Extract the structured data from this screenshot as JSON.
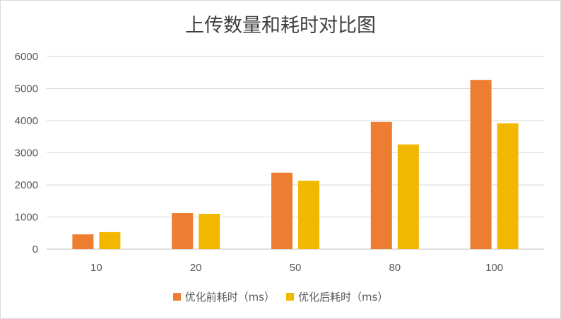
{
  "chart_data": {
    "type": "bar",
    "title": "上传数量和耗时对比图",
    "xlabel": "",
    "ylabel": "",
    "categories": [
      "10",
      "20",
      "50",
      "80",
      "100"
    ],
    "series": [
      {
        "name": "优化前耗时（ms）",
        "color": "#ed7d31",
        "values": [
          460,
          1120,
          2380,
          3960,
          5270
        ]
      },
      {
        "name": "优化后耗时（ms）",
        "color": "#f2b800",
        "values": [
          530,
          1100,
          2130,
          3260,
          3920
        ]
      }
    ],
    "ylim": [
      0,
      6000
    ],
    "yticks": [
      0,
      1000,
      2000,
      3000,
      4000,
      5000,
      6000
    ],
    "grid": true,
    "legend_position": "bottom"
  }
}
